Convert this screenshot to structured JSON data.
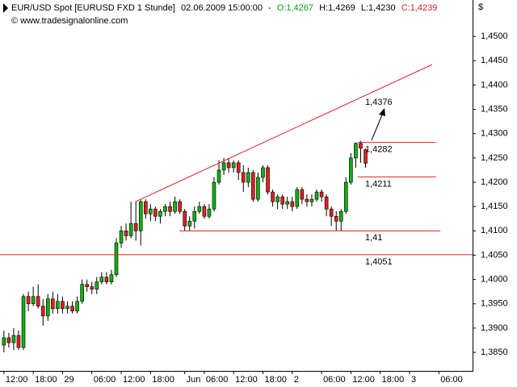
{
  "header": {
    "instrument": "EUR/USD Spot [EURUSD FXD  1 Stunde]",
    "datetime": "02.06.2009 15:00:00",
    "separator": "-",
    "open": "O:1,4267",
    "high": "H:1,4269",
    "low": "L:1,4230",
    "close": "C:1,4239",
    "copyright": "© www.tradesignalonline.com",
    "currency": "$"
  },
  "chart_data": {
    "type": "candlestick",
    "up_color": "#10b010",
    "down_color": "#e02020",
    "line_color": "#e02020",
    "x": [
      0,
      1,
      2,
      3,
      4,
      5,
      6,
      7,
      8,
      9,
      10,
      11,
      12,
      13,
      14,
      15,
      16,
      17,
      18,
      19,
      20,
      21,
      22,
      23,
      24,
      25,
      26,
      27,
      28,
      29,
      30,
      31,
      32,
      33,
      34,
      35,
      36,
      37,
      38,
      39,
      40,
      41,
      42,
      43,
      44,
      45,
      46,
      47,
      48,
      49,
      50,
      51,
      52,
      53,
      54,
      55,
      56,
      57,
      58,
      59,
      60,
      61,
      62,
      63,
      64,
      65,
      66,
      67,
      68,
      69,
      70,
      71,
      72,
      73,
      74
    ],
    "open": [
      1.3865,
      1.388,
      1.387,
      1.3885,
      1.386,
      1.3965,
      1.395,
      1.3965,
      1.3945,
      1.3925,
      1.396,
      1.394,
      1.3955,
      1.394,
      1.3945,
      1.3935,
      1.3955,
      1.399,
      1.3985,
      1.398,
      1.3995,
      1.4005,
      1.3995,
      1.401,
      1.4075,
      1.41,
      1.409,
      1.4115,
      1.41,
      1.416,
      1.4135,
      1.4145,
      1.413,
      1.414,
      1.415,
      1.414,
      1.416,
      1.414,
      1.411,
      1.412,
      1.414,
      1.415,
      1.413,
      1.4145,
      1.42,
      1.4225,
      1.424,
      1.423,
      1.424,
      1.422,
      1.42,
      1.422,
      1.4165,
      1.421,
      1.423,
      1.418,
      1.416,
      1.417,
      1.4155,
      1.416,
      1.415,
      1.4185,
      1.4165,
      1.416,
      1.4165,
      1.418,
      1.417,
      1.4145,
      1.413,
      1.412,
      1.414,
      1.42,
      1.425,
      1.428,
      1.4267
    ],
    "high": [
      1.3895,
      1.389,
      1.39,
      1.3895,
      1.397,
      1.3975,
      1.3985,
      1.399,
      1.396,
      1.397,
      1.3975,
      1.397,
      1.3965,
      1.3955,
      1.3955,
      1.3965,
      1.4,
      1.4,
      1.3995,
      1.4005,
      1.4015,
      1.4015,
      1.402,
      1.4085,
      1.411,
      1.4115,
      1.416,
      1.416,
      1.4165,
      1.4165,
      1.4155,
      1.415,
      1.4145,
      1.4155,
      1.416,
      1.417,
      1.4165,
      1.4145,
      1.413,
      1.415,
      1.416,
      1.4155,
      1.4155,
      1.421,
      1.4245,
      1.425,
      1.425,
      1.4245,
      1.4245,
      1.4235,
      1.423,
      1.4225,
      1.422,
      1.4235,
      1.4235,
      1.4185,
      1.4175,
      1.4175,
      1.417,
      1.417,
      1.419,
      1.419,
      1.4175,
      1.4175,
      1.4185,
      1.4185,
      1.4175,
      1.415,
      1.414,
      1.4145,
      1.421,
      1.426,
      1.4282,
      1.4285,
      1.4269
    ],
    "low": [
      1.385,
      1.386,
      1.3855,
      1.3855,
      1.3855,
      1.3935,
      1.3945,
      1.394,
      1.3905,
      1.3915,
      1.393,
      1.393,
      1.393,
      1.393,
      1.393,
      1.393,
      1.395,
      1.3975,
      1.397,
      1.397,
      1.399,
      1.399,
      1.399,
      1.4005,
      1.4065,
      1.408,
      1.4085,
      1.408,
      1.407,
      1.4125,
      1.412,
      1.412,
      1.4115,
      1.413,
      1.413,
      1.4135,
      1.4135,
      1.41,
      1.41,
      1.4105,
      1.4135,
      1.4125,
      1.4125,
      1.414,
      1.4195,
      1.4215,
      1.422,
      1.422,
      1.4205,
      1.418,
      1.419,
      1.416,
      1.416,
      1.42,
      1.4175,
      1.415,
      1.4145,
      1.4145,
      1.4145,
      1.414,
      1.4145,
      1.4155,
      1.415,
      1.415,
      1.416,
      1.416,
      1.413,
      1.411,
      1.41,
      1.41,
      1.4135,
      1.4195,
      1.423,
      1.424,
      1.423
    ],
    "close": [
      1.388,
      1.387,
      1.3885,
      1.386,
      1.3965,
      1.395,
      1.3965,
      1.3945,
      1.3925,
      1.396,
      1.394,
      1.3955,
      1.394,
      1.3945,
      1.3935,
      1.3955,
      1.399,
      1.3985,
      1.398,
      1.3995,
      1.4005,
      1.3995,
      1.401,
      1.4075,
      1.41,
      1.409,
      1.4115,
      1.41,
      1.416,
      1.4135,
      1.4145,
      1.413,
      1.414,
      1.415,
      1.414,
      1.416,
      1.414,
      1.411,
      1.412,
      1.414,
      1.415,
      1.413,
      1.4145,
      1.42,
      1.4225,
      1.424,
      1.423,
      1.424,
      1.422,
      1.42,
      1.422,
      1.4165,
      1.421,
      1.423,
      1.418,
      1.416,
      1.417,
      1.4155,
      1.416,
      1.415,
      1.4185,
      1.4165,
      1.416,
      1.4165,
      1.418,
      1.417,
      1.4145,
      1.413,
      1.412,
      1.414,
      1.42,
      1.425,
      1.428,
      1.427,
      1.4239
    ],
    "xlim": [
      -0.8,
      95.9
    ],
    "xticks": [
      {
        "value": 0,
        "label": "12:00"
      },
      {
        "value": 6,
        "label": "18:00"
      },
      {
        "value": 12,
        "label": "29"
      },
      {
        "value": 18,
        "label": "06:00"
      },
      {
        "value": 24,
        "label": "12:00"
      },
      {
        "value": 30,
        "label": "18:00"
      },
      {
        "value": 37,
        "label": "Jun"
      },
      {
        "value": 41,
        "label": "06:00"
      },
      {
        "value": 47,
        "label": "12:00"
      },
      {
        "value": 53,
        "label": "18:00"
      },
      {
        "value": 59,
        "label": "2"
      },
      {
        "value": 65,
        "label": "06:00"
      },
      {
        "value": 71,
        "label": "12:00"
      },
      {
        "value": 77,
        "label": "18:00"
      },
      {
        "value": 83,
        "label": "3"
      },
      {
        "value": 89,
        "label": "06:00"
      }
    ],
    "ylim": [
      1.3812,
      1.455
    ],
    "yticks": [
      {
        "value": 1.385,
        "label": "1,3850"
      },
      {
        "value": 1.39,
        "label": "1,3900"
      },
      {
        "value": 1.395,
        "label": "1,3950"
      },
      {
        "value": 1.4,
        "label": "1,4000"
      },
      {
        "value": 1.405,
        "label": "1,4050"
      },
      {
        "value": 1.41,
        "label": "1,4100"
      },
      {
        "value": 1.415,
        "label": "1,4150"
      },
      {
        "value": 1.42,
        "label": "1,4200"
      },
      {
        "value": 1.425,
        "label": "1,4250"
      },
      {
        "value": 1.43,
        "label": "1,4300"
      },
      {
        "value": 1.435,
        "label": "1,4350"
      },
      {
        "value": 1.44,
        "label": "1,4400"
      },
      {
        "value": 1.445,
        "label": "1,4450"
      },
      {
        "value": 1.45,
        "label": "1,4500"
      }
    ],
    "trendline": {
      "x": [
        26.9,
        87.6
      ],
      "y": [
        1.416,
        1.4442
      ]
    },
    "levels": [
      {
        "value": 1.4282,
        "label": "1,4282",
        "x": [
          72.4,
          88.4
        ]
      },
      {
        "value": 1.4211,
        "label": "1,4211",
        "x": [
          72.4,
          88.4
        ]
      },
      {
        "value": 1.41,
        "label": "1,41",
        "x": [
          35.9,
          89.3
        ]
      },
      {
        "value": 1.4051,
        "label": "1,4051",
        "x": [
          -0.8,
          95.9
        ]
      }
    ],
    "target": {
      "value": 1.4376,
      "label": "1,4376"
    }
  }
}
